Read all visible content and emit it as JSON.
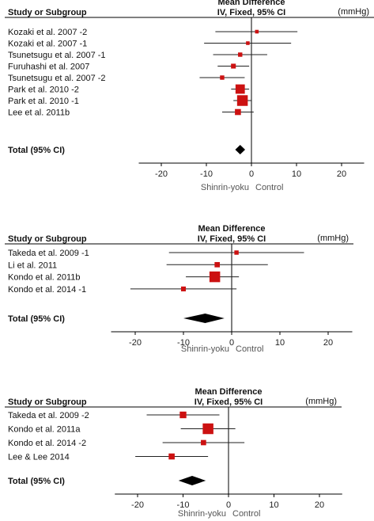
{
  "chart_data": [
    {
      "type": "forest",
      "header_left": "Study or Subgroup",
      "header_title_1": "Mean Difference",
      "header_title_2": "IV, Fixed, 95% CI",
      "unit": "(mmHg)",
      "xlim": [
        -25,
        25
      ],
      "xticks": [
        "-20",
        "-10",
        "0",
        "10",
        "20"
      ],
      "direction_left": "Shinrin-yoku",
      "direction_right": "Control",
      "studies": [
        {
          "name": "Kozaki et al. 2007 -2",
          "md": 1.2,
          "lo": -8.0,
          "hi": 10.2,
          "weight": 1.0
        },
        {
          "name": "Kozaki et al. 2007 -1",
          "md": -0.8,
          "lo": -10.5,
          "hi": 8.8,
          "weight": 1.0
        },
        {
          "name": "Tsunetsugu et al. 2007 -1",
          "md": -2.5,
          "lo": -8.5,
          "hi": 3.5,
          "weight": 2.0
        },
        {
          "name": "Furuhashi et al. 2007",
          "md": -4.0,
          "lo": -7.5,
          "hi": -0.5,
          "weight": 3.0
        },
        {
          "name": "Tsunetsugu et al. 2007 -2",
          "md": -6.5,
          "lo": -11.5,
          "hi": -1.5,
          "weight": 2.0
        },
        {
          "name": "Park et al. 2010 -2",
          "md": -2.5,
          "lo": -4.5,
          "hi": -0.5,
          "weight": 20.0
        },
        {
          "name": "Park et al. 2010 -1",
          "md": -2.0,
          "lo": -4.0,
          "hi": 0.0,
          "weight": 28.0
        },
        {
          "name": "Lee et al. 2011b",
          "md": -3.0,
          "lo": -6.5,
          "hi": 0.5,
          "weight": 6.0
        }
      ],
      "total": {
        "label": "Total (95% CI)",
        "md": -2.5,
        "lo": -3.6,
        "hi": -1.4
      }
    },
    {
      "type": "forest",
      "header_left": "Study or Subgroup",
      "header_title_1": "Mean Difference",
      "header_title_2": "IV, Fixed, 95% CI",
      "unit": "(mmHg)",
      "xlim": [
        -25,
        25
      ],
      "xticks": [
        "-20",
        "-10",
        "0",
        "10",
        "20"
      ],
      "direction_left": "Shinrin-yoku",
      "direction_right": "Control",
      "studies": [
        {
          "name": "Takeda et al. 2009 -1",
          "md": 1.0,
          "lo": -13.0,
          "hi": 15.0,
          "weight": 2.0
        },
        {
          "name": "Li et al. 2011",
          "md": -3.0,
          "lo": -13.5,
          "hi": 7.5,
          "weight": 4.0
        },
        {
          "name": "Kondo et al. 2011b",
          "md": -3.5,
          "lo": -9.5,
          "hi": 1.5,
          "weight": 28.0
        },
        {
          "name": "Kondo et al. 2014 -1",
          "md": -10.0,
          "lo": -21.0,
          "hi": 1.0,
          "weight": 3.0
        }
      ],
      "total": {
        "label": "Total (95% CI)",
        "md": -5.5,
        "lo": -10.0,
        "hi": -1.5
      }
    },
    {
      "type": "forest",
      "header_left": "Study or Subgroup",
      "header_title_1": "Mean Difference",
      "header_title_2": "IV, Fixed, 95% CI",
      "unit": "(mmHg)",
      "xlim": [
        -25,
        25
      ],
      "xticks": [
        "-20",
        "-10",
        "0",
        "10",
        "20"
      ],
      "direction_left": "Shinrin-yoku",
      "direction_right": "Control",
      "studies": [
        {
          "name": "Takeda et al. 2009 -2",
          "md": -10.0,
          "lo": -18.0,
          "hi": -2.0,
          "weight": 8.0
        },
        {
          "name": "Kondo et al. 2011a",
          "md": -4.5,
          "lo": -10.5,
          "hi": 1.5,
          "weight": 28.0
        },
        {
          "name": "Kondo et al. 2014 -2",
          "md": -5.5,
          "lo": -14.5,
          "hi": 3.5,
          "weight": 4.0
        },
        {
          "name": "Lee & Lee 2014",
          "md": -12.5,
          "lo": -20.5,
          "hi": -4.5,
          "weight": 6.0
        }
      ],
      "total": {
        "label": "Total (95% CI)",
        "md": -8.0,
        "lo": -11.0,
        "hi": -5.0
      }
    }
  ],
  "colors": {
    "marker": "#cc1111",
    "diamond": "#000000",
    "line": "#000000",
    "ci_line": "#222222"
  }
}
